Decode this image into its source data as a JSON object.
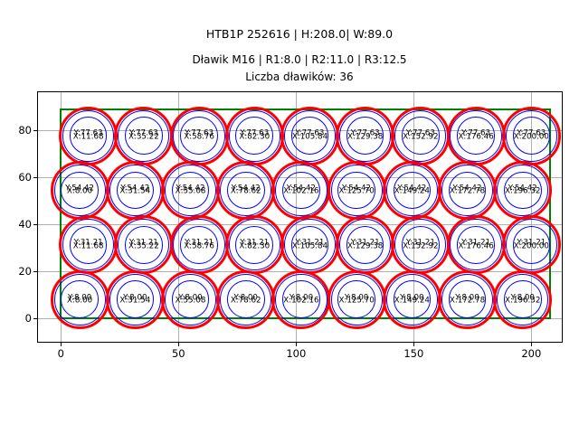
{
  "header": {
    "title": "HTB1P 252616 | H:208.0| W:89.0",
    "subtitle_line1": "Dławik M16 | R1:8.0 | R2:11.0 | R3:12.5",
    "subtitle_line2": "Liczba dławików: 36"
  },
  "chart_data": {
    "type": "scatter",
    "title": "HTB1P 252616 | H:208.0| W:89.0",
    "subtitle": [
      "Dławik M16 | R1:8.0 | R2:11.0 | R3:12.5",
      "Liczba dławików: 36"
    ],
    "description": "Cable-gland layout drawing: 36 glands (Dławik M16) placed inside a 208.0 x 89.0 panel outline; each gland drawn as concentric circles R1:8.0, R2:11.0, R3:12.5 and annotated with its X/Y centre coordinates",
    "panel_outline": {
      "x": 0,
      "y": 0,
      "width": 208.0,
      "height": 89.0
    },
    "gland": {
      "label": "Dławik M16",
      "r1": 8.0,
      "r2": 11.0,
      "r3": 12.5,
      "count": 36
    },
    "rows": [
      {
        "y": 8.0,
        "x": [
          8.0,
          31.54,
          55.08,
          78.62,
          102.16,
          125.7,
          149.24,
          172.78,
          196.32
        ]
      },
      {
        "y": 31.21,
        "x": [
          11.68,
          35.22,
          58.76,
          82.3,
          105.84,
          129.38,
          152.92,
          176.46,
          200.0
        ]
      },
      {
        "y": 54.42,
        "x": [
          8.0,
          31.54,
          55.08,
          78.62,
          102.16,
          125.7,
          149.24,
          172.78,
          196.32
        ]
      },
      {
        "y": 77.63,
        "x": [
          11.68,
          35.22,
          58.76,
          82.3,
          105.84,
          129.38,
          152.92,
          176.46,
          200.0
        ]
      }
    ],
    "point_label": {
      "x_prefix": "X:",
      "y_prefix": "Y:",
      "decimals": 2
    },
    "xticks": [
      0,
      50,
      100,
      150,
      200
    ],
    "yticks": [
      0,
      20,
      40,
      60,
      80
    ],
    "xlim": [
      -10.1,
      213.4
    ],
    "ylim": [
      -10.4,
      96.5
    ],
    "grid": true,
    "legend": "none",
    "colors": {
      "outer_circle": "#ff0000",
      "inner_circles": "#0000ff",
      "panel_outline": "#008000",
      "grid": "#b0b0b0",
      "text": "#000000"
    }
  }
}
